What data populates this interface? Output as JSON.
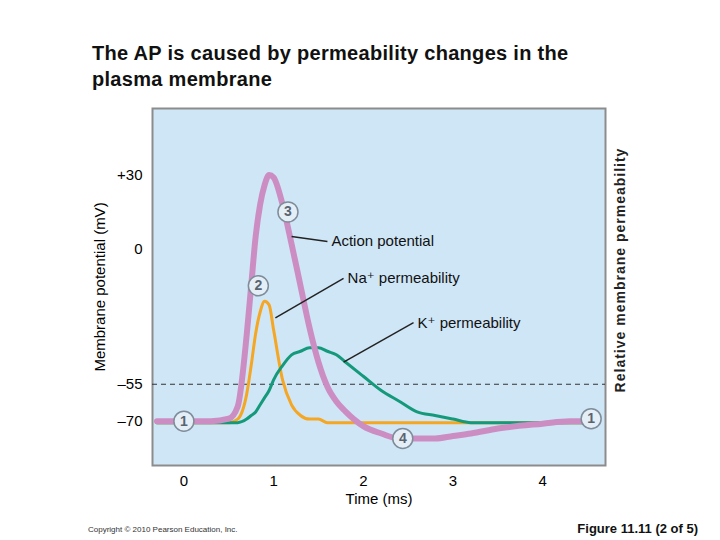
{
  "chart_data": {
    "type": "line",
    "title": "The AP is caused by permeability changes in the plasma membrane",
    "xlabel": "Time (ms)",
    "ylabel": "Membrane potential (mV)",
    "y2label": "Relative membrane permeability",
    "source": "Copyright © 2010 Pearson Education, Inc.",
    "caption": "Figure 11.11 (2 of 5)",
    "xlim": [
      -0.35,
      4.7
    ],
    "xticks": [
      0,
      1,
      2,
      3,
      4
    ],
    "ylim": [
      -88,
      57
    ],
    "yticks": [
      {
        "value": 30,
        "label": "+30"
      },
      0,
      {
        "value": -55,
        "label": "–55"
      },
      {
        "value": -70,
        "label": "–70"
      }
    ],
    "y2lim": [
      0,
      1
    ],
    "y2ticks": [],
    "threshold": -55,
    "x": [
      -0.3,
      0,
      0.3,
      0.5,
      0.6,
      0.7,
      0.75,
      0.8,
      0.85,
      0.9,
      0.95,
      1.0,
      1.1,
      1.2,
      1.3,
      1.4,
      1.5,
      1.6,
      1.7,
      1.8,
      2.0,
      2.2,
      2.4,
      2.6,
      2.8,
      3.0,
      3.2,
      3.5,
      4.0,
      4.3,
      4.6
    ],
    "series": [
      {
        "name": "Na⁺ permeability",
        "color": "#f5a623",
        "axis": "y2",
        "values": [
          0.12,
          0.12,
          0.12,
          0.12,
          0.13,
          0.2,
          0.28,
          0.37,
          0.43,
          0.46,
          0.45,
          0.38,
          0.24,
          0.17,
          0.14,
          0.13,
          0.13,
          0.12,
          0.12,
          0.12,
          0.12,
          0.12,
          0.12,
          0.12,
          0.12,
          0.12,
          0.12,
          0.12,
          0.12,
          0.12,
          0.12
        ]
      },
      {
        "name": "K⁺ permeability",
        "color": "#149a7b",
        "axis": "y2",
        "values": [
          0.12,
          0.12,
          0.12,
          0.12,
          0.12,
          0.13,
          0.14,
          0.15,
          0.17,
          0.19,
          0.21,
          0.24,
          0.28,
          0.31,
          0.32,
          0.33,
          0.33,
          0.32,
          0.31,
          0.29,
          0.25,
          0.21,
          0.18,
          0.15,
          0.14,
          0.13,
          0.12,
          0.12,
          0.12,
          0.12,
          0.12
        ]
      },
      {
        "name": "Action potential",
        "color": "#cc8ec2",
        "axis": "y",
        "values": [
          -70,
          -70,
          -70,
          -69,
          -64,
          -35,
          -15,
          5,
          18,
          26,
          30,
          29,
          18,
          2,
          -15,
          -32,
          -46,
          -56,
          -62,
          -66,
          -72,
          -75,
          -77,
          -77,
          -77,
          -76,
          -75,
          -73,
          -71,
          -70,
          -70
        ]
      }
    ],
    "annotations": [
      {
        "text": "Action potential",
        "x": 1.6,
        "y": 3,
        "xy": [
          1.2,
          5
        ]
      },
      {
        "text": "Na⁺ permeability",
        "x": 1.78,
        "y": -12,
        "xy": [
          1.02,
          -28
        ]
      },
      {
        "text": "K⁺ permeability",
        "x": 2.56,
        "y": -30,
        "xy": [
          1.78,
          -46
        ]
      },
      {
        "text": "1",
        "x": 0,
        "y": -70
      },
      {
        "text": "2",
        "x": 0.83,
        "y": -15
      },
      {
        "text": "3",
        "x": 1.16,
        "y": 15
      },
      {
        "text": "4",
        "x": 2.44,
        "y": -77
      },
      {
        "text": "1",
        "x": 4.54,
        "y": -69
      }
    ]
  }
}
